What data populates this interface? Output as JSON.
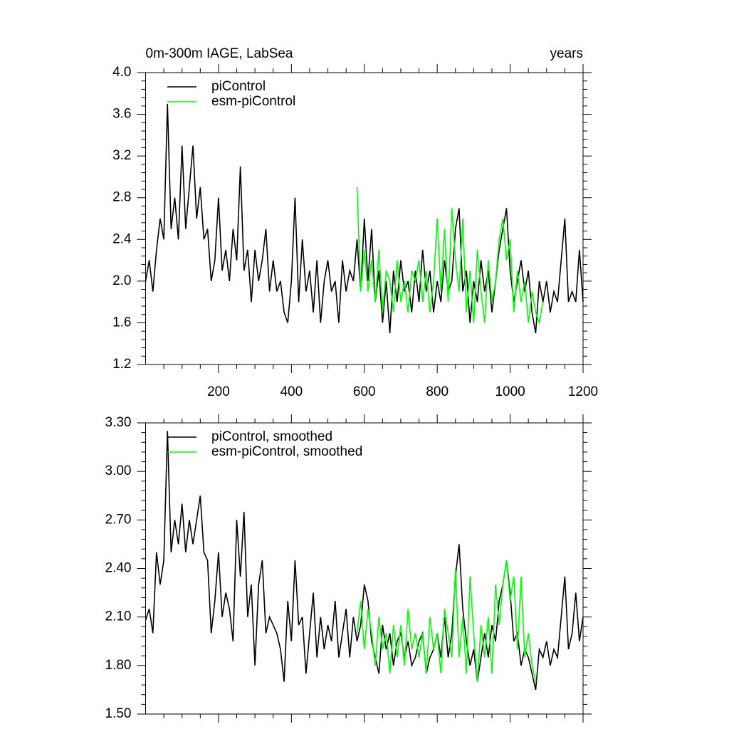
{
  "chart_data": [
    {
      "type": "line",
      "title": "0m-300m IAGE, LabSea",
      "right_title": "years",
      "xlim": [
        0,
        1200
      ],
      "xticks": [
        200,
        400,
        600,
        800,
        1000,
        1200
      ],
      "ylim": [
        1.2,
        4.0
      ],
      "yticks": [
        1.2,
        1.6,
        {
          "value": 2,
          "label": "2.0"
        },
        2.4,
        2.8,
        3.2,
        3.6,
        {
          "value": 4,
          "label": "4.0"
        }
      ],
      "series": [
        {
          "name": "piControl",
          "color": "#000000",
          "x": [
            0,
            10,
            20,
            30,
            40,
            50,
            60,
            70,
            80,
            90,
            100,
            110,
            120,
            130,
            140,
            150,
            160,
            170,
            180,
            190,
            200,
            210,
            220,
            230,
            240,
            250,
            260,
            270,
            280,
            290,
            300,
            310,
            320,
            330,
            340,
            350,
            360,
            370,
            380,
            390,
            400,
            410,
            420,
            430,
            440,
            450,
            460,
            470,
            480,
            490,
            500,
            510,
            520,
            530,
            540,
            550,
            560,
            570,
            580,
            590,
            600,
            610,
            620,
            630,
            640,
            650,
            660,
            670,
            680,
            690,
            700,
            710,
            720,
            730,
            740,
            750,
            760,
            770,
            780,
            790,
            800,
            810,
            820,
            830,
            840,
            850,
            860,
            870,
            880,
            890,
            900,
            910,
            920,
            930,
            940,
            950,
            960,
            970,
            980,
            990,
            1000,
            1010,
            1020,
            1030,
            1040,
            1050,
            1060,
            1070,
            1080,
            1090,
            1100,
            1110,
            1120,
            1130,
            1140,
            1150,
            1160,
            1170,
            1180,
            1190,
            1200
          ],
          "values": [
            2.0,
            2.2,
            1.9,
            2.3,
            2.6,
            2.4,
            3.7,
            2.5,
            2.8,
            2.4,
            3.3,
            2.5,
            2.9,
            3.3,
            2.6,
            2.9,
            2.4,
            2.5,
            2.0,
            2.2,
            2.8,
            2.1,
            2.3,
            2.0,
            2.5,
            2.2,
            3.1,
            2.1,
            2.3,
            1.8,
            2.3,
            2.0,
            2.2,
            2.5,
            1.9,
            2.2,
            1.9,
            2.0,
            1.7,
            1.6,
            2.0,
            2.8,
            1.8,
            2.4,
            1.9,
            2.1,
            1.7,
            2.2,
            1.6,
            2.0,
            2.2,
            1.9,
            2.0,
            1.6,
            2.2,
            1.9,
            2.1,
            2.0,
            2.4,
            1.9,
            2.6,
            2.0,
            2.5,
            1.8,
            2.1,
            1.6,
            2.0,
            1.5,
            2.1,
            1.8,
            2.2,
            1.9,
            2.0,
            1.7,
            2.1,
            1.8,
            2.3,
            1.9,
            2.1,
            1.7,
            2.0,
            1.8,
            2.2,
            1.9,
            2.0,
            2.5,
            2.7,
            1.9,
            2.1,
            1.6,
            2.0,
            1.8,
            2.2,
            1.9,
            2.1,
            1.7,
            2.0,
            2.3,
            2.5,
            2.7,
            2.1,
            1.8,
            2.0,
            2.2,
            1.9,
            2.1,
            1.7,
            1.5,
            2.0,
            1.8,
            2.0,
            1.7,
            1.9,
            1.8,
            2.2,
            2.6,
            1.8,
            1.9,
            1.8,
            2.3,
            1.8
          ]
        },
        {
          "name": "esm-piControl",
          "color": "#00ff00",
          "x": [
            580,
            590,
            600,
            610,
            620,
            630,
            640,
            650,
            660,
            670,
            680,
            690,
            700,
            710,
            720,
            730,
            740,
            750,
            760,
            770,
            780,
            790,
            800,
            810,
            820,
            830,
            840,
            850,
            860,
            870,
            880,
            890,
            900,
            910,
            920,
            930,
            940,
            950,
            960,
            970,
            980,
            990,
            1000,
            1010,
            1020,
            1030,
            1040,
            1050,
            1060,
            1070,
            1080,
            1090
          ],
          "values": [
            2.9,
            1.9,
            2.3,
            1.9,
            2.2,
            1.8,
            2.3,
            1.7,
            2.1,
            2.0,
            1.7,
            2.2,
            1.8,
            2.0,
            1.7,
            2.1,
            2.0,
            2.2,
            1.8,
            2.1,
            1.7,
            2.0,
            2.6,
            1.9,
            2.5,
            1.8,
            2.7,
            2.2,
            1.9,
            2.6,
            1.7,
            2.1,
            1.6,
            2.3,
            1.9,
            1.6,
            2.2,
            1.8,
            2.0,
            2.4,
            2.6,
            2.2,
            2.4,
            1.7,
            2.1,
            1.8,
            2.0,
            1.6,
            1.9,
            1.7,
            1.6,
            1.8
          ]
        }
      ]
    },
    {
      "type": "line",
      "xlim": [
        0,
        1200
      ],
      "ylim": [
        1.5,
        3.3
      ],
      "yticks": [
        {
          "value": 1.5,
          "label": "1.50"
        },
        {
          "value": 1.8,
          "label": "1.80"
        },
        {
          "value": 2.1,
          "label": "2.10"
        },
        {
          "value": 2.4,
          "label": "2.40"
        },
        {
          "value": 2.7,
          "label": "2.70"
        },
        {
          "value": 3,
          "label": "3.00"
        },
        {
          "value": 3.3,
          "label": "3.30"
        }
      ],
      "series": [
        {
          "name": "piControl, smoothed",
          "color": "#000000",
          "x": [
            0,
            10,
            20,
            30,
            40,
            50,
            60,
            70,
            80,
            90,
            100,
            110,
            120,
            130,
            140,
            150,
            160,
            170,
            180,
            190,
            200,
            210,
            220,
            230,
            240,
            250,
            260,
            270,
            280,
            290,
            300,
            310,
            320,
            330,
            340,
            350,
            360,
            370,
            380,
            390,
            400,
            410,
            420,
            430,
            440,
            450,
            460,
            470,
            480,
            490,
            500,
            510,
            520,
            530,
            540,
            550,
            560,
            570,
            580,
            590,
            600,
            610,
            620,
            630,
            640,
            650,
            660,
            670,
            680,
            690,
            700,
            710,
            720,
            730,
            740,
            750,
            760,
            770,
            780,
            790,
            800,
            810,
            820,
            830,
            840,
            850,
            860,
            870,
            880,
            890,
            900,
            910,
            920,
            930,
            940,
            950,
            960,
            970,
            980,
            990,
            1000,
            1010,
            1020,
            1030,
            1040,
            1050,
            1060,
            1070,
            1080,
            1090,
            1100,
            1110,
            1120,
            1130,
            1140,
            1150,
            1160,
            1170,
            1180,
            1190,
            1200
          ],
          "values": [
            2.08,
            2.15,
            2.0,
            2.5,
            2.3,
            2.45,
            3.25,
            2.5,
            2.7,
            2.55,
            2.8,
            2.5,
            2.7,
            2.55,
            2.7,
            2.85,
            2.5,
            2.45,
            2.0,
            2.2,
            2.5,
            2.1,
            2.25,
            2.15,
            1.95,
            2.7,
            2.35,
            2.75,
            2.1,
            2.3,
            1.8,
            2.3,
            2.45,
            2.0,
            2.1,
            2.05,
            2.0,
            1.9,
            1.7,
            2.2,
            1.95,
            2.45,
            2.05,
            2.1,
            1.75,
            2.0,
            2.25,
            1.85,
            2.1,
            1.9,
            2.05,
            1.95,
            2.2,
            1.85,
            2.0,
            2.15,
            1.85,
            2.1,
            1.95,
            2.05,
            2.3,
            2.2,
            1.95,
            1.85,
            1.75,
            2.05,
            1.9,
            2.0,
            1.8,
            1.95,
            2.0,
            1.85,
            1.95,
            1.8,
            1.85,
            1.95,
            2.0,
            1.75,
            1.85,
            1.9,
            2.0,
            1.85,
            2.1,
            1.85,
            2.0,
            2.35,
            2.55,
            2.15,
            1.95,
            1.8,
            1.9,
            1.7,
            1.85,
            2.0,
            1.85,
            2.05,
            1.95,
            2.2,
            2.3,
            2.45,
            2.25,
            1.95,
            2.0,
            1.8,
            1.9,
            1.85,
            1.75,
            1.65,
            1.9,
            1.85,
            1.95,
            1.8,
            1.9,
            1.85,
            2.1,
            2.35,
            1.9,
            2.0,
            2.25,
            1.95,
            2.1
          ]
        },
        {
          "name": "esm-piControl, smoothed",
          "color": "#00ff00",
          "x": [
            580,
            590,
            600,
            610,
            620,
            630,
            640,
            650,
            660,
            670,
            680,
            690,
            700,
            710,
            720,
            730,
            740,
            750,
            760,
            770,
            780,
            790,
            800,
            810,
            820,
            830,
            840,
            850,
            860,
            870,
            880,
            890,
            900,
            910,
            920,
            930,
            940,
            950,
            960,
            970,
            980,
            990,
            1000,
            1010,
            1020,
            1030,
            1040,
            1050,
            1060,
            1070
          ],
          "values": [
            2.0,
            2.2,
            1.9,
            2.15,
            2.0,
            1.8,
            2.1,
            1.9,
            2.0,
            1.75,
            2.05,
            1.85,
            2.05,
            1.8,
            2.15,
            1.9,
            2.0,
            1.85,
            2.0,
            1.75,
            2.1,
            1.9,
            2.0,
            1.75,
            2.15,
            2.0,
            1.85,
            2.4,
            1.85,
            2.1,
            1.75,
            2.35,
            2.0,
            1.7,
            2.05,
            1.85,
            2.1,
            1.75,
            2.3,
            2.05,
            2.3,
            2.45,
            2.2,
            2.35,
            1.9,
            2.35,
            1.85,
            2.0,
            1.8,
            1.7
          ]
        }
      ]
    }
  ]
}
